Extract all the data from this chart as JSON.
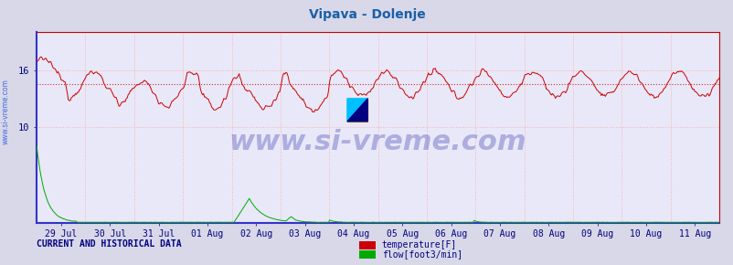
{
  "title": "Vipava - Dolenje",
  "title_color": "#1a5fa8",
  "title_fontsize": 10,
  "bg_color": "#d8d8e8",
  "plot_bg_color": "#e8e8f8",
  "grid_color": "#ffb0b0",
  "x_label_color": "#000080",
  "y_label_color": "#000080",
  "watermark_text": "www.si-vreme.com",
  "watermark_color": "#000099",
  "watermark_alpha": 0.25,
  "watermark_fontsize": 22,
  "sidebar_text": "www.si-vreme.com",
  "sidebar_color": "#4169e1",
  "ylim": [
    0,
    20
  ],
  "yticks": [
    10,
    16
  ],
  "temp_color": "#cc0000",
  "flow_color": "#00aa00",
  "temp_mean": 14.5,
  "flow_mean": 0.08,
  "border_color": "#3333cc",
  "x_date_labels": [
    "29 Jul",
    "30 Jul",
    "31 Jul",
    "01 Aug",
    "02 Aug",
    "03 Aug",
    "04 Aug",
    "05 Aug",
    "06 Aug",
    "07 Aug",
    "08 Aug",
    "09 Aug",
    "10 Aug",
    "11 Aug"
  ],
  "legend_text1": "temperature[F]",
  "legend_text2": "flow[foot3/min]",
  "footer_text": "CURRENT AND HISTORICAL DATA",
  "footer_color": "#000080",
  "footer_fontsize": 7,
  "n_points": 672,
  "temp_base": 14.5,
  "temp_amplitude": 1.3,
  "flow_max": 8.0,
  "flow_spike2": 2.5
}
